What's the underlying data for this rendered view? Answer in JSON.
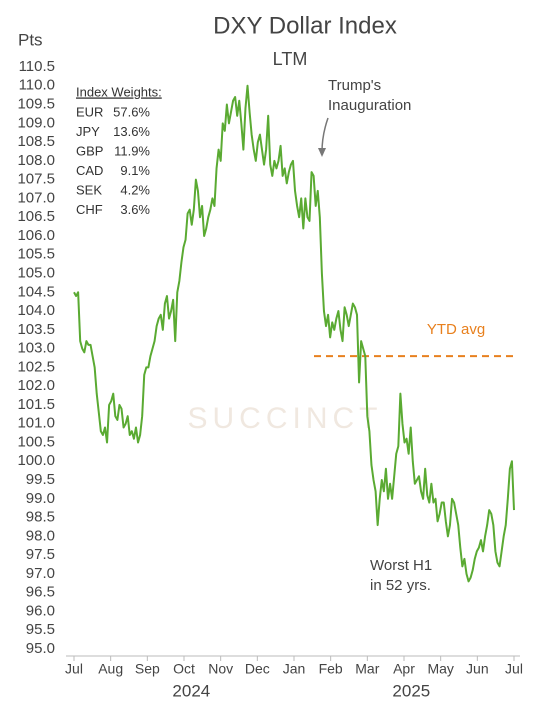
{
  "chart_data": {
    "type": "line",
    "title": "DXY Dollar Index",
    "subtitle": "LTM",
    "ylabel": "Pts",
    "ylim": [
      95,
      110.5
    ],
    "yticks": [
      {
        "value": 95,
        "label": "95.0"
      },
      95.5,
      {
        "value": 96,
        "label": "96.0"
      },
      96.5,
      {
        "value": 97,
        "label": "97.0"
      },
      97.5,
      {
        "value": 98,
        "label": "98.0"
      },
      98.5,
      {
        "value": 99,
        "label": "99.0"
      },
      99.5,
      {
        "value": 100,
        "label": "100.0"
      },
      100.5,
      {
        "value": 101,
        "label": "101.0"
      },
      101.5,
      {
        "value": 102,
        "label": "102.0"
      },
      102.5,
      {
        "value": 103,
        "label": "103.0"
      },
      103.5,
      {
        "value": 104,
        "label": "104.0"
      },
      104.5,
      {
        "value": 105,
        "label": "105.0"
      },
      105.5,
      {
        "value": 106,
        "label": "106.0"
      },
      106.5,
      {
        "value": 107,
        "label": "107.0"
      },
      107.5,
      {
        "value": 108,
        "label": "108.0"
      },
      108.5,
      {
        "value": 109,
        "label": "109.0"
      },
      109.5,
      {
        "value": 110,
        "label": "110.0"
      },
      110.5
    ],
    "months": [
      "Jul",
      "Aug",
      "Sep",
      "Oct",
      "Nov",
      "Dec",
      "Jan",
      "Feb",
      "Mar",
      "Apr",
      "May",
      "Jun",
      "Jul"
    ],
    "years": [
      "2024",
      "2025"
    ],
    "series": [
      {
        "name": "DXY",
        "color": "#5aaa32",
        "values": [
          104.5,
          104.4,
          104.5,
          103.2,
          103.0,
          102.9,
          103.2,
          103.1,
          103.1,
          102.8,
          102.5,
          101.8,
          101.3,
          100.8,
          100.7,
          100.9,
          100.5,
          101.5,
          101.6,
          101.8,
          101.2,
          101.1,
          101.5,
          101.4,
          100.9,
          101.0,
          101.2,
          100.7,
          100.8,
          100.6,
          100.9,
          100.5,
          100.7,
          101.2,
          102.3,
          102.5,
          102.5,
          102.8,
          103.0,
          103.2,
          103.6,
          103.8,
          103.9,
          103.5,
          104.2,
          104.4,
          103.8,
          104.0,
          104.3,
          103.2,
          104.5,
          104.8,
          105.3,
          105.7,
          105.9,
          106.6,
          106.7,
          106.3,
          106.7,
          107.5,
          107.2,
          106.5,
          106.8,
          106.0,
          106.2,
          106.5,
          106.7,
          107.0,
          106.8,
          107.8,
          108.3,
          108.0,
          109.0,
          108.8,
          109.5,
          109.0,
          109.3,
          109.6,
          109.7,
          109.2,
          109.6,
          109.0,
          108.3,
          109.4,
          110.0,
          109.3,
          108.7,
          108.3,
          108.0,
          108.5,
          108.7,
          108.3,
          107.9,
          108.3,
          109.2,
          107.9,
          107.6,
          108.0,
          107.8,
          108.0,
          108.4,
          107.6,
          107.8,
          107.4,
          107.7,
          107.9,
          108.0,
          107.2,
          106.8,
          106.5,
          107.0,
          106.2,
          107.0,
          106.5,
          106.4,
          107.7,
          107.6,
          106.8,
          107.2,
          106.5,
          105.0,
          104.0,
          103.6,
          103.9,
          103.3,
          103.7,
          103.5,
          103.8,
          104.0,
          103.5,
          103.2,
          104.1,
          103.9,
          103.6,
          103.9,
          104.2,
          104.1,
          103.9,
          102.1,
          103.2,
          103.0,
          102.8,
          101.2,
          100.8,
          99.9,
          99.5,
          99.2,
          98.3,
          99.0,
          99.5,
          99.2,
          99.8,
          99.0,
          99.4,
          99.0,
          99.6,
          100.2,
          100.4,
          101.8,
          101.0,
          100.5,
          100.6,
          100.2,
          100.9,
          100.0,
          99.4,
          99.5,
          99.6,
          99.2,
          99.0,
          99.8,
          99.1,
          98.9,
          99.4,
          98.9,
          99.0,
          98.4,
          98.6,
          98.9,
          98.9,
          98.4,
          98.0,
          98.3,
          99.0,
          98.9,
          98.6,
          98.3,
          97.7,
          97.2,
          97.4,
          97.0,
          96.8,
          96.9,
          97.1,
          97.4,
          97.6,
          97.7,
          97.9,
          97.6,
          98.0,
          98.3,
          98.7,
          98.6,
          98.3,
          97.6,
          97.3,
          97.2,
          97.6,
          98.0,
          98.3,
          99.0,
          99.8,
          100.0,
          98.7
        ]
      }
    ],
    "ytd_avg": {
      "label": "YTD avg",
      "value": 102.8,
      "color": "#e8801e"
    },
    "annotations": [
      "Trump's",
      "Inauguration",
      "Worst H1",
      "in 52 yrs."
    ],
    "watermark": "SUCCINCT",
    "weights": {
      "title": "Index Weights:",
      "names": [
        "EUR",
        "JPY",
        "GBP",
        "CAD",
        "SEK",
        "CHF"
      ],
      "values": [
        57.6,
        13.6,
        11.9,
        9.1,
        4.2,
        3.6
      ],
      "value_labels": [
        "57.6%",
        "13.6%",
        "11.9%",
        "9.1%",
        "4.2%",
        "3.6%"
      ]
    }
  }
}
